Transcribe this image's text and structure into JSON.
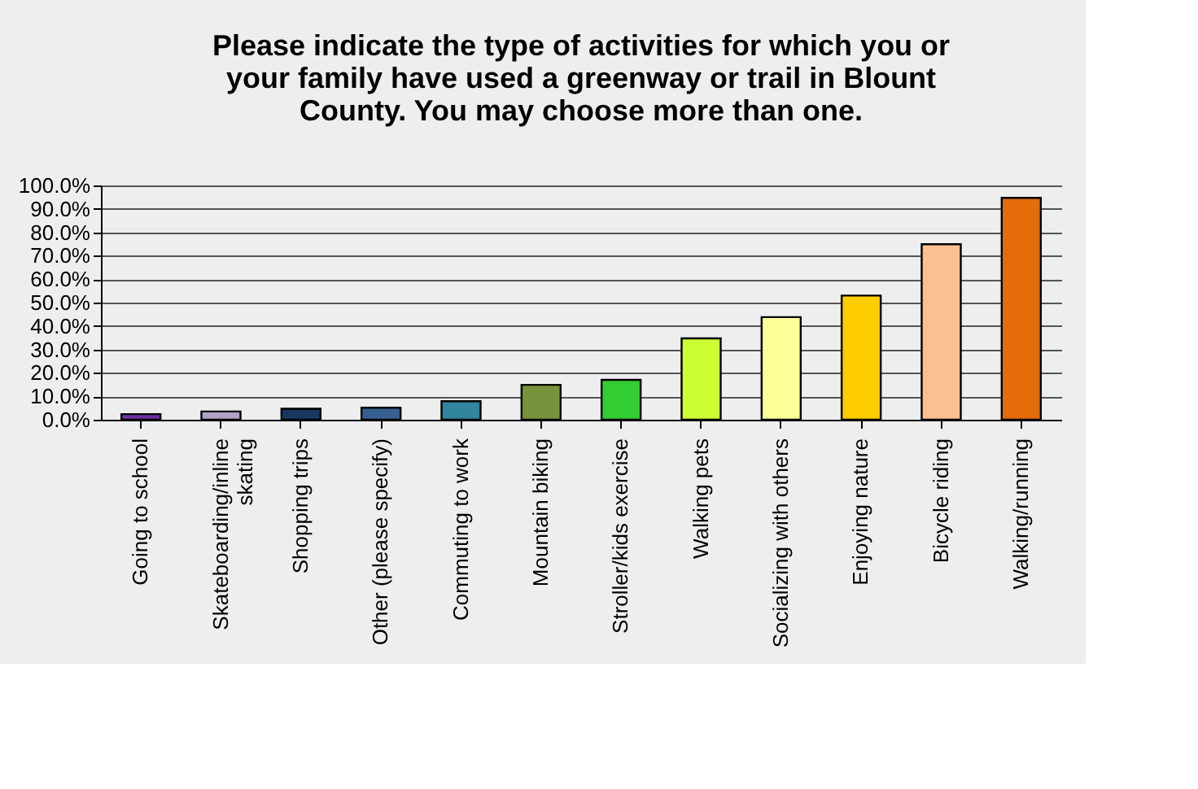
{
  "chart_data": {
    "type": "bar",
    "title": [
      "Please indicate the type of activities for which you or",
      "your family have used a greenway or trail in Blount",
      "County. You may choose more than one."
    ],
    "categories": [
      "Going to school",
      "Skateboarding/inline skating",
      "Shopping trips",
      "Other (please specify)",
      "Commuting to work",
      "Mountain biking",
      "Stroller/kids exercise",
      "Walking pets",
      "Socializing with others",
      "Enjoying nature",
      "Bicycle riding",
      "Walking/running"
    ],
    "values": [
      2.4,
      3.5,
      4.7,
      5.1,
      7.9,
      14.9,
      17.0,
      34.7,
      43.8,
      53.0,
      74.9,
      94.7
    ],
    "colors": [
      "#7030a0",
      "#b3a2c7",
      "#17375e",
      "#376092",
      "#31859c",
      "#77933c",
      "#33cc33",
      "#ccff33",
      "#ffff99",
      "#ffcc00",
      "#fac090",
      "#e46c0a"
    ],
    "ylim": [
      0,
      100
    ],
    "yticks": [
      {
        "value": 0,
        "label": "0.0%"
      },
      {
        "value": 10,
        "label": "10.0%"
      },
      {
        "value": 20,
        "label": "20.0%"
      },
      {
        "value": 30,
        "label": "30.0%"
      },
      {
        "value": 40,
        "label": "40.0%"
      },
      {
        "value": 50,
        "label": "50.0%"
      },
      {
        "value": 60,
        "label": "60.0%"
      },
      {
        "value": 70,
        "label": "70.0%"
      },
      {
        "value": 80,
        "label": "80.0%"
      },
      {
        "value": 90,
        "label": "90.0%"
      },
      {
        "value": 100,
        "label": "100.0%"
      }
    ],
    "grid": "y"
  }
}
